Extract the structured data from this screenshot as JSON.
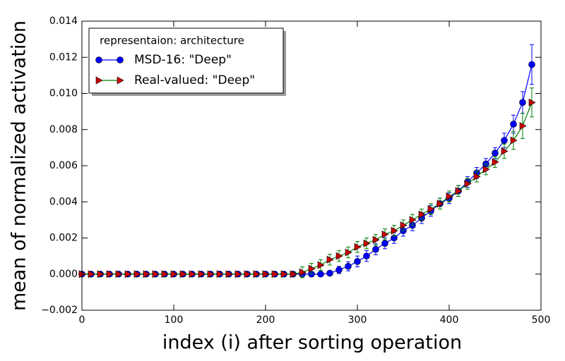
{
  "chart_data": {
    "type": "line",
    "xlabel": "index (i) after sorting operation",
    "ylabel": "mean of normalized activation",
    "legend_title": "representaion: architecture",
    "legend_position": "upper left",
    "x": [
      0,
      10,
      20,
      30,
      40,
      50,
      60,
      70,
      80,
      90,
      100,
      110,
      120,
      130,
      140,
      150,
      160,
      170,
      180,
      190,
      200,
      210,
      220,
      230,
      240,
      250,
      260,
      270,
      280,
      290,
      300,
      310,
      320,
      330,
      340,
      350,
      360,
      370,
      380,
      390,
      400,
      410,
      420,
      430,
      440,
      450,
      460,
      470,
      480,
      490
    ],
    "series": [
      {
        "name": "MSD-16: \"Deep\"",
        "color": "#0000ff",
        "marker_color": "#0000ff",
        "marker": "circle",
        "values": [
          0,
          0,
          0,
          0,
          0,
          0,
          0,
          0,
          0,
          0,
          0,
          0,
          0,
          0,
          0,
          0,
          0,
          0,
          0,
          0,
          0,
          0,
          0,
          0,
          0,
          0,
          0,
          5e-05,
          0.00023,
          0.00043,
          0.0007,
          0.001,
          0.00137,
          0.0017,
          0.002,
          0.0024,
          0.0027,
          0.0031,
          0.0035,
          0.0039,
          0.0042,
          0.0046,
          0.0051,
          0.0056,
          0.0061,
          0.0067,
          0.0074,
          0.0083,
          0.0095,
          0.0116
        ],
        "errors": [
          0,
          0,
          0,
          0,
          0,
          0,
          0,
          0,
          0,
          0,
          0,
          0,
          0,
          0,
          0,
          0,
          0,
          0,
          0,
          0,
          0,
          0,
          0,
          0,
          0,
          0,
          5e-05,
          0.0001,
          0.0002,
          0.00025,
          0.0003,
          0.0003,
          0.0003,
          0.0003,
          0.0003,
          0.0003,
          0.0003,
          0.0003,
          0.0003,
          0.0003,
          0.0003,
          0.0003,
          0.0003,
          0.0003,
          0.0003,
          0.0003,
          0.0004,
          0.0005,
          0.0006,
          0.0011
        ]
      },
      {
        "name": "Real-valued: \"Deep\"",
        "color": "#007f00",
        "marker_color": "#cc0000",
        "marker": "triangle-right",
        "values": [
          0,
          0,
          0,
          0,
          0,
          0,
          0,
          0,
          0,
          0,
          0,
          0,
          0,
          0,
          0,
          0,
          0,
          0,
          0,
          0,
          0,
          0,
          0,
          0,
          0.0001,
          0.0003,
          0.0005,
          0.0008,
          0.001,
          0.0012,
          0.0015,
          0.0017,
          0.0019,
          0.0022,
          0.0024,
          0.0027,
          0.003,
          0.0033,
          0.0036,
          0.0039,
          0.0043,
          0.0046,
          0.005,
          0.0054,
          0.0058,
          0.0062,
          0.0068,
          0.0074,
          0.0082,
          0.0095
        ],
        "errors": [
          0,
          0,
          0,
          0,
          0,
          0,
          0,
          0,
          0,
          0,
          0,
          0,
          0,
          0,
          0,
          0,
          0,
          0,
          0,
          0,
          0,
          0,
          0,
          0.0001,
          0.0003,
          0.0003,
          0.0003,
          0.0003,
          0.0003,
          0.0003,
          0.0003,
          0.0003,
          0.0003,
          0.0003,
          0.0003,
          0.0003,
          0.0003,
          0.0003,
          0.0003,
          0.0003,
          0.0003,
          0.0003,
          0.0003,
          0.0003,
          0.0003,
          0.0003,
          0.0004,
          0.0005,
          0.0007,
          0.0008
        ]
      }
    ],
    "xlim": [
      0,
      500
    ],
    "xticks": [
      0,
      100,
      200,
      300,
      400,
      500
    ],
    "ylim": [
      -0.002,
      0.014
    ],
    "yticks": [
      {
        "value": -0.002,
        "label": "−0.002"
      },
      {
        "value": 0,
        "label": "0.000"
      },
      0.002,
      0.004,
      0.006,
      0.008,
      {
        "value": 0.01,
        "label": "0.010"
      },
      0.012,
      0.014
    ]
  }
}
